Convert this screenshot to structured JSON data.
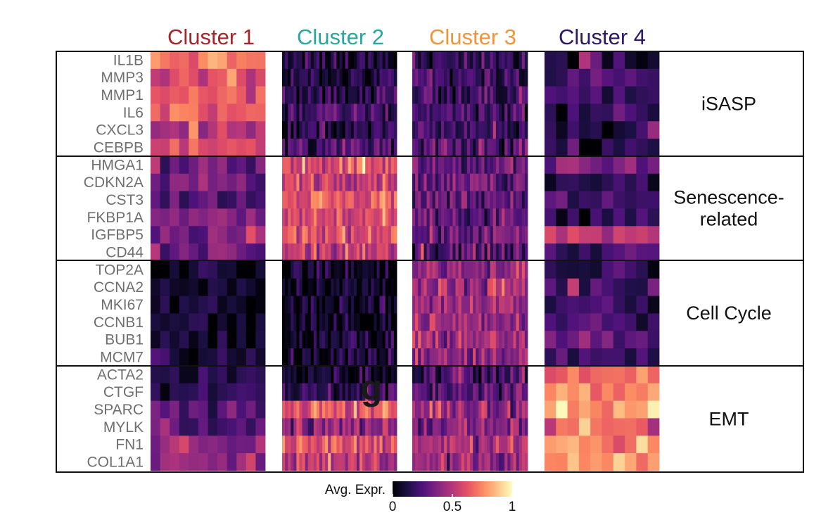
{
  "chart_data": {
    "type": "heatmap",
    "title": "",
    "clusters": [
      {
        "name": "Cluster 1",
        "color": "#a3262a",
        "cell_count": 12
      },
      {
        "name": "Cluster 2",
        "color": "#27a79d",
        "cell_count": 40
      },
      {
        "name": "Cluster 3",
        "color": "#f0963a",
        "cell_count": 40
      },
      {
        "name": "Cluster 4",
        "color": "#2c1863",
        "cell_count": 10
      }
    ],
    "gene_groups": [
      {
        "name": "iSASP",
        "label_lines": [
          "iSASP"
        ],
        "genes": [
          "IL1B",
          "MMP3",
          "MMP1",
          "IL6",
          "CXCL3",
          "CEBPB"
        ]
      },
      {
        "name": "Senescence-related",
        "label_lines": [
          "Senescence-",
          "related"
        ],
        "genes": [
          "HMGA1",
          "CDKN2A",
          "CST3",
          "FKBP1A",
          "IGFBP5",
          "CD44"
        ]
      },
      {
        "name": "Cell Cycle",
        "label_lines": [
          "Cell Cycle"
        ],
        "genes": [
          "TOP2A",
          "CCNA2",
          "MKI67",
          "CCNB1",
          "BUB1",
          "MCM7"
        ]
      },
      {
        "name": "EMT",
        "label_lines": [
          "EMT"
        ],
        "genes": [
          "ACTA2",
          "CTGF",
          "SPARC",
          "MYLK",
          "FN1",
          "COL1A1"
        ]
      }
    ],
    "mean_expression": [
      [
        0.72,
        0.12,
        0.18,
        0.2
      ],
      [
        0.58,
        0.1,
        0.2,
        0.2
      ],
      [
        0.66,
        0.14,
        0.18,
        0.18
      ],
      [
        0.66,
        0.22,
        0.24,
        0.16
      ],
      [
        0.48,
        0.14,
        0.22,
        0.16
      ],
      [
        0.58,
        0.24,
        0.24,
        0.16
      ],
      [
        0.28,
        0.62,
        0.28,
        0.32
      ],
      [
        0.32,
        0.58,
        0.3,
        0.2
      ],
      [
        0.26,
        0.62,
        0.32,
        0.22
      ],
      [
        0.34,
        0.58,
        0.26,
        0.16
      ],
      [
        0.34,
        0.62,
        0.32,
        0.5
      ],
      [
        0.3,
        0.5,
        0.28,
        0.24
      ],
      [
        0.08,
        0.06,
        0.42,
        0.18
      ],
      [
        0.06,
        0.06,
        0.44,
        0.2
      ],
      [
        0.06,
        0.06,
        0.46,
        0.18
      ],
      [
        0.06,
        0.06,
        0.46,
        0.24
      ],
      [
        0.08,
        0.08,
        0.44,
        0.28
      ],
      [
        0.14,
        0.1,
        0.38,
        0.24
      ],
      [
        0.12,
        0.1,
        0.22,
        0.72
      ],
      [
        0.14,
        0.18,
        0.28,
        0.76
      ],
      [
        0.26,
        0.62,
        0.42,
        0.82
      ],
      [
        0.22,
        0.4,
        0.36,
        0.66
      ],
      [
        0.34,
        0.62,
        0.44,
        0.8
      ],
      [
        0.38,
        0.52,
        0.4,
        0.82
      ]
    ],
    "color_scale": {
      "name": "Avg. Expr.",
      "min": 0,
      "max": 1,
      "ticks": [
        {
          "value": 0,
          "label": "0"
        },
        {
          "value": 0.5,
          "label": "0.5"
        },
        {
          "value": 1,
          "label": "1"
        }
      ],
      "colors": [
        "#000004",
        "#1c1044",
        "#4f127b",
        "#812581",
        "#b5367a",
        "#e55064",
        "#fb8761",
        "#fec287",
        "#fcfdbf"
      ]
    },
    "annotation": "g"
  }
}
